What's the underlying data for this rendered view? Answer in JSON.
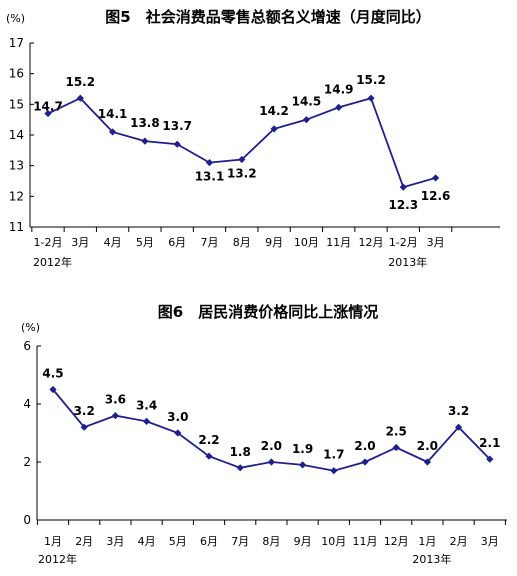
{
  "line_color": "#1f1f8f",
  "marker": "diamond",
  "chart_data": [
    {
      "type": "line",
      "title": "图5　社会消费品零售总额名义增速（月度同比）",
      "unit": "(%)",
      "categories": [
        "1-2月",
        "3月",
        "4月",
        "5月",
        "6月",
        "7月",
        "8月",
        "9月",
        "10月",
        "11月",
        "12月",
        "1-2月",
        "3月"
      ],
      "year_labels": [
        {
          "index": 0,
          "text": "2012年"
        },
        {
          "index": 11,
          "text": "2013年"
        }
      ],
      "values": [
        14.7,
        15.2,
        14.1,
        13.8,
        13.7,
        13.1,
        13.2,
        14.2,
        14.5,
        14.9,
        15.2,
        12.3,
        12.6
      ],
      "data_labels": [
        "14.7",
        "15.2",
        "14.1",
        "13.8",
        "13.7",
        "13.1",
        "13.2",
        "14.2",
        "14.5",
        "14.9",
        "15.2",
        "12.3",
        "12.6"
      ],
      "ylim": [
        11,
        17
      ],
      "yticks": [
        "11",
        "12",
        "13",
        "14",
        "15",
        "16",
        "17"
      ],
      "grid": false,
      "legend": "none"
    },
    {
      "type": "line",
      "title": "图6　居民消费价格同比上涨情况",
      "unit": "(%)",
      "categories": [
        "1月",
        "2月",
        "3月",
        "4月",
        "5月",
        "6月",
        "7月",
        "8月",
        "9月",
        "10月",
        "11月",
        "12月",
        "1月",
        "2月",
        "3月"
      ],
      "year_labels": [
        {
          "index": 0,
          "text": "2012年"
        },
        {
          "index": 12,
          "text": "2013年"
        }
      ],
      "values": [
        4.5,
        3.2,
        3.6,
        3.4,
        3.0,
        2.2,
        1.8,
        2.0,
        1.9,
        1.7,
        2.0,
        2.5,
        2.0,
        3.2,
        2.1
      ],
      "data_labels": [
        "4.5",
        "3.2",
        "3.6",
        "3.4",
        "3.0",
        "2.2",
        "1.8",
        "2.0",
        "1.9",
        "1.7",
        "2.0",
        "2.5",
        "2.0",
        "3.2",
        "2.1"
      ],
      "ylim": [
        0,
        6
      ],
      "yticks": [
        "0",
        "2",
        "4",
        "6"
      ],
      "grid": false,
      "legend": "none"
    }
  ]
}
